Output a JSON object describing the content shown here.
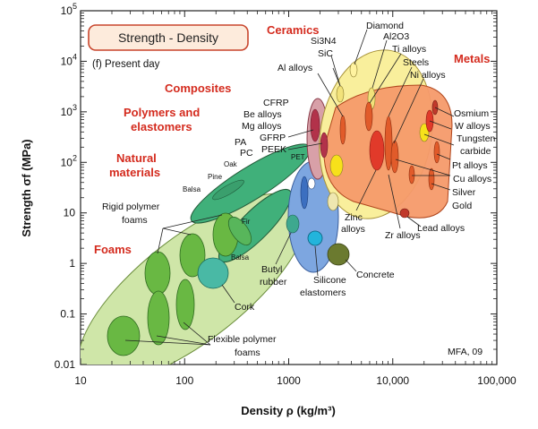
{
  "chart_data": {
    "type": "scatter",
    "title": "Strength - Density",
    "subtitle": "(f) Present day",
    "xlabel": "Density ρ (kg/m³)",
    "ylabel": "Strength σf (MPa)",
    "xscale": "log",
    "yscale": "log",
    "xlim": [
      10,
      100000
    ],
    "ylim": [
      0.01,
      100000
    ],
    "x_ticks": [
      "10",
      "100",
      "1000",
      "10,000",
      "100,000"
    ],
    "y_ticks": [
      "0.01",
      "0.1",
      "1",
      "10",
      "10",
      "10",
      "10",
      "10"
    ],
    "y_tick_values": [
      0.01,
      0.1,
      1,
      10,
      100,
      1000,
      10000,
      100000
    ],
    "y_tick_exponents": [
      "",
      "",
      "",
      "",
      "2",
      "3",
      "4",
      "5"
    ],
    "credit": "MFA, 09",
    "families": [
      {
        "name": "Foams",
        "color": "#a6d17a",
        "x_range": [
          18,
          1000
        ],
        "y_range": [
          0.012,
          30
        ]
      },
      {
        "name": "Natural materials",
        "color": "#3aaa6e",
        "x_range": [
          150,
          1300
        ],
        "y_range": [
          1.5,
          300
        ]
      },
      {
        "name": "Polymers and elastomers",
        "color": "#5f8fd6",
        "x_range": [
          900,
          2200
        ],
        "y_range": [
          0.7,
          150
        ]
      },
      {
        "name": "Composites",
        "color": "#c9506a",
        "x_range": [
          1200,
          2500
        ],
        "y_range": [
          50,
          1500
        ]
      },
      {
        "name": "Ceramics",
        "color": "#f6e983",
        "x_range": [
          1900,
          8000
        ],
        "y_range": [
          1.5,
          10000
        ]
      },
      {
        "name": "Metals",
        "color": "#f36c3a",
        "x_range": [
          1700,
          23000
        ],
        "y_range": [
          10,
          3000
        ]
      }
    ],
    "materials": [
      {
        "name": "Rigid polymer foams",
        "x": 40,
        "y": 1.5
      },
      {
        "name": "Flexible polymer foams",
        "x": 40,
        "y": 0.04
      },
      {
        "name": "Cork",
        "x": 150,
        "y": 0.9
      },
      {
        "name": "Balsa",
        "x": 180,
        "y": 35
      },
      {
        "name": "Pine",
        "x": 400,
        "y": 70
      },
      {
        "name": "Oak",
        "x": 700,
        "y": 100
      },
      {
        "name": "Fir",
        "x": 450,
        "y": 6
      },
      {
        "name": "Butyl rubber",
        "x": 920,
        "y": 5
      },
      {
        "name": "Silicone elastomers",
        "x": 1500,
        "y": 3
      },
      {
        "name": "PA",
        "x": 1100,
        "y": 80
      },
      {
        "name": "PC",
        "x": 1200,
        "y": 65
      },
      {
        "name": "PET",
        "x": 1350,
        "y": 55
      },
      {
        "name": "PEEK",
        "x": 1300,
        "y": 110
      },
      {
        "name": "GFRP",
        "x": 1900,
        "y": 300
      },
      {
        "name": "Mg alloys",
        "x": 1800,
        "y": 200
      },
      {
        "name": "Be alloys",
        "x": 1850,
        "y": 350
      },
      {
        "name": "CFRP",
        "x": 1600,
        "y": 600
      },
      {
        "name": "Al alloys",
        "x": 2700,
        "y": 300
      },
      {
        "name": "SiC",
        "x": 3200,
        "y": 1500
      },
      {
        "name": "Si3N4",
        "x": 3200,
        "y": 1800
      },
      {
        "name": "Al2O3",
        "x": 3900,
        "y": 3000
      },
      {
        "name": "Diamond",
        "x": 3500,
        "y": 8000
      },
      {
        "name": "Ti alloys",
        "x": 4500,
        "y": 900
      },
      {
        "name": "Steels",
        "x": 7800,
        "y": 1000
      },
      {
        "name": "Ni alloys",
        "x": 8500,
        "y": 800
      },
      {
        "name": "Concrete",
        "x": 2400,
        "y": 2
      },
      {
        "name": "Zinc alloys",
        "x": 6800,
        "y": 200
      },
      {
        "name": "Zr alloys",
        "x": 6500,
        "y": 300
      },
      {
        "name": "Lead alloys",
        "x": 11000,
        "y": 15
      },
      {
        "name": "Osmium",
        "x": 22000,
        "y": 800
      },
      {
        "name": "W alloys",
        "x": 19000,
        "y": 1200
      },
      {
        "name": "Tungsten carbide",
        "x": 15500,
        "y": 500
      },
      {
        "name": "Pt alloys",
        "x": 21000,
        "y": 300
      },
      {
        "name": "Cu alloys",
        "x": 8900,
        "y": 300
      },
      {
        "name": "Silver",
        "x": 10500,
        "y": 100
      },
      {
        "name": "Gold",
        "x": 19300,
        "y": 100
      }
    ]
  },
  "labels": {
    "ceramics": "Ceramics",
    "metals": "Metals",
    "composites": "Composites",
    "polymers1": "Polymers and",
    "polymers2": "elastomers",
    "natural1": "Natural",
    "natural2": "materials",
    "foams": "Foams",
    "diamond": "Diamond",
    "si3n4": "Si3N4",
    "al2o3": "Al2O3",
    "sic": "SiC",
    "ti": "Ti alloys",
    "steels": "Steels",
    "al": "Al alloys",
    "ni": "Ni alloys",
    "cfrp": "CFRP",
    "be": "Be alloys",
    "mg": "Mg alloys",
    "gfrp": "GFRP",
    "peek": "PEEK",
    "pa": "PA",
    "pc": "PC",
    "pet": "PET",
    "pine": "Pine",
    "oak": "Oak",
    "balsa": "Balsa",
    "fir": "Fir",
    "balsa2": "Balsa",
    "rigid1": "Rigid polymer",
    "rigid2": "foams",
    "flex1": "Flexible polymer",
    "flex2": "foams",
    "cork": "Cork",
    "butyl1": "Butyl",
    "butyl2": "rubber",
    "silicone1": "Silicone",
    "silicone2": "elastomers",
    "concrete": "Concrete",
    "zinc1": "Zinc",
    "zinc2": "alloys",
    "zr": "Zr alloys",
    "lead": "Lead alloys",
    "osmium": "Osmium",
    "w": "W alloys",
    "tungsten1": "Tungsten",
    "tungsten2": "carbide",
    "pt": "Pt alloys",
    "cu": "Cu alloys",
    "silver": "Silver",
    "gold": "Gold"
  }
}
